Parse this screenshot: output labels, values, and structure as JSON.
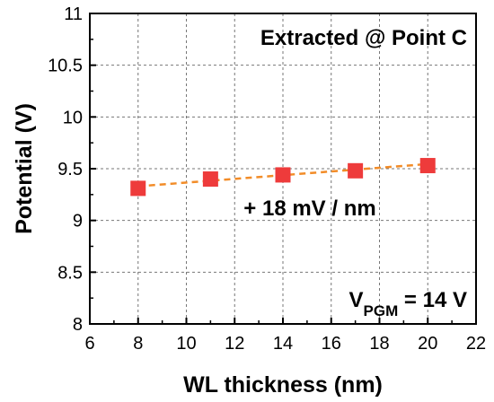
{
  "chart_data": {
    "type": "scatter",
    "xlabel": "WL thickness (nm)",
    "ylabel": "Potential (V)",
    "xlim": [
      6,
      22
    ],
    "ylim": [
      8,
      11
    ],
    "xticks": [
      6,
      8,
      10,
      12,
      14,
      16,
      18,
      20,
      22
    ],
    "yticks": [
      8,
      8.5,
      9,
      9.5,
      10,
      10.5,
      11
    ],
    "xtick_labels": [
      "6",
      "8",
      "10",
      "12",
      "14",
      "16",
      "18",
      "20",
      "22"
    ],
    "ytick_labels": [
      "8",
      "8.5",
      "9",
      "9.5",
      "10",
      "10.5",
      "11"
    ],
    "grid": true,
    "series": [
      {
        "x": [
          8,
          11,
          14,
          17,
          20
        ],
        "y": [
          9.31,
          9.4,
          9.44,
          9.48,
          9.53
        ],
        "marker": "square",
        "color": "#ee3b3b"
      }
    ],
    "fit_line": {
      "x": [
        8,
        20
      ],
      "y": [
        9.33,
        9.545
      ],
      "style": "dashed",
      "color": "#f28c28"
    },
    "annotations": {
      "top_right": "Extracted @ Point C",
      "slope": "+ 18 mV / nm",
      "vpgm_main": "V",
      "vpgm_sub": "PGM",
      "vpgm_rest": " = 14 V"
    }
  }
}
